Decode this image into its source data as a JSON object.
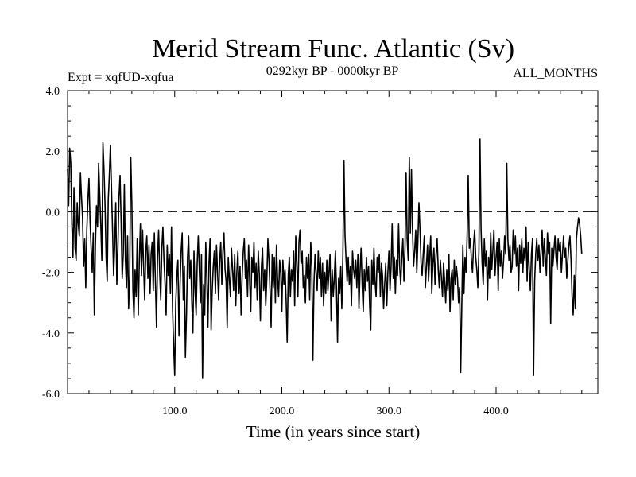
{
  "chart_data": {
    "type": "line",
    "title": "Merid Stream Func. Atlantic (Sv)",
    "subtitle_left": "Expt = xqfUD-xqfua",
    "subtitle_center": "0292kyr BP - 0000kyr BP",
    "subtitle_right": "ALL_MONTHS",
    "xlabel": "Time (in years since start)",
    "ylabel": "",
    "xlim": [
      0,
      495
    ],
    "ylim": [
      -6,
      4
    ],
    "x_ticks": [
      100,
      200,
      300,
      400
    ],
    "x_tick_labels": [
      "100.0",
      "200.0",
      "300.0",
      "400.0"
    ],
    "y_ticks": [
      -6,
      -4,
      -2,
      0,
      2,
      4
    ],
    "y_tick_labels": [
      "-6.0",
      "-4.0",
      "-2.0",
      "0.0",
      "2.0",
      "4.0"
    ],
    "reference_line": {
      "y": 0,
      "style": "dashed"
    },
    "series": [
      {
        "name": "xqfUD-xqfua",
        "x_start": 0,
        "x_step": 1,
        "values": [
          1.4,
          0.2,
          2.1,
          1.6,
          -0.4,
          -1.5,
          0.8,
          -1.2,
          -1.6,
          0.3,
          -0.4,
          -0.8,
          1.3,
          0.5,
          -0.2,
          -1.8,
          -0.9,
          -2.5,
          -0.6,
          0.4,
          1.1,
          -0.3,
          -1.2,
          -2.0,
          -0.7,
          -3.4,
          -1.1,
          0.2,
          -0.5,
          1.6,
          0.6,
          -0.4,
          -1.6,
          2.3,
          1.4,
          0.2,
          -1.5,
          -2.3,
          0.4,
          1.2,
          2.2,
          0.8,
          -0.6,
          -2.1,
          -1.1,
          0.3,
          -2.4,
          -1.2,
          0.5,
          1.2,
          -0.3,
          -2.2,
          -1.4,
          0.9,
          -1.6,
          -2.5,
          -0.8,
          -3.2,
          -2.1,
          1.8,
          0.3,
          -2.6,
          -3.5,
          -1.9,
          -2.8,
          -0.9,
          -3.4,
          -1.6,
          -0.4,
          -2.1,
          -0.6,
          -1.8,
          -2.9,
          -1.3,
          -0.8,
          -2.2,
          -1.1,
          -2.7,
          -1.4,
          -1.0,
          -2.6,
          -0.7,
          -2.3,
          -3.8,
          -1.5,
          -0.6,
          -2.0,
          -2.9,
          -1.2,
          -0.5,
          -1.6,
          -2.4,
          -3.4,
          -1.1,
          -2.1,
          -1.4,
          -2.7,
          -0.5,
          -3.2,
          -4.4,
          -5.4,
          -3.0,
          -2.1,
          -1.6,
          -4.1,
          -2.4,
          -1.3,
          -0.7,
          -2.9,
          -1.8,
          -4.8,
          -3.4,
          -1.5,
          -0.8,
          -2.2,
          -1.6,
          -3.0,
          -4.0,
          -1.3,
          -2.6,
          -3.4,
          -1.7,
          -0.8,
          -1.9,
          -3.0,
          -1.4,
          -5.5,
          -2.4,
          -3.4,
          -1.0,
          -2.2,
          -3.8,
          -1.7,
          -0.9,
          -3.9,
          -2.6,
          -1.8,
          -1.3,
          -2.7,
          -1.1,
          -2.0,
          -2.9,
          -1.6,
          -1.0,
          -2.4,
          -1.3,
          -0.7,
          -1.9,
          -2.3,
          -3.8,
          -1.5,
          -2.2,
          -2.8,
          -1.2,
          -1.9,
          -2.6,
          -1.4,
          -3.1,
          -2.0,
          -1.3,
          -2.7,
          -1.8,
          -3.4,
          -2.1,
          -1.3,
          -0.9,
          -2.2,
          -1.6,
          -2.8,
          -1.1,
          -2.3,
          -3.3,
          -1.5,
          -2.0,
          -1.0,
          -2.5,
          -1.7,
          -2.9,
          -1.3,
          -2.1,
          -3.6,
          -1.8,
          -1.2,
          -2.6,
          -1.9,
          -3.1,
          -2.2,
          -0.9,
          -1.6,
          -2.6,
          -3.8,
          -1.4,
          -2.5,
          -1.5,
          -3.0,
          -1.1,
          -2.2,
          -2.8,
          -1.6,
          -2.0,
          -3.3,
          -1.6,
          -2.4,
          -1.9,
          -2.9,
          -4.3,
          -2.1,
          -1.5,
          -2.8,
          -1.9,
          -2.3,
          -1.3,
          -3.1,
          -0.8,
          -1.7,
          -2.8,
          -1.0,
          -0.6,
          -1.7,
          -1.3,
          -2.5,
          -2.1,
          -3.0,
          -1.5,
          -2.2,
          -1.4,
          -2.9,
          -1.0,
          -1.8,
          -4.9,
          -2.4,
          -1.4,
          -2.0,
          -2.6,
          -1.3,
          -2.2,
          -1.5,
          -2.8,
          -1.7,
          -3.1,
          -2.0,
          -2.7,
          -1.6,
          -2.6,
          -2.0,
          -1.4,
          -3.6,
          -1.9,
          -2.8,
          -2.2,
          -1.3,
          -2.5,
          -4.3,
          -2.2,
          -2.7,
          -1.8,
          -3.2,
          -1.4,
          1.7,
          -0.8,
          -1.6,
          -2.3,
          -1.5,
          -2.4,
          -1.8,
          -3.1,
          -1.3,
          -1.9,
          -2.2,
          -1.6,
          -2.5,
          -1.4,
          -3.2,
          -2.0,
          -1.2,
          -2.4,
          -3.3,
          -1.9,
          -2.6,
          -1.5,
          -2.3,
          -1.8,
          -3.1,
          -3.9,
          -1.6,
          -2.4,
          -1.2,
          -2.3,
          -2.8,
          -1.5,
          -2.0,
          -1.4,
          -2.8,
          -1.7,
          -2.1,
          -3.2,
          -2.4,
          -1.7,
          -3.1,
          -2.0,
          -1.3,
          -2.6,
          -1.8,
          -0.4,
          -2.2,
          -1.5,
          -2.7,
          -1.6,
          -2.1,
          -0.4,
          -1.8,
          -2.4,
          -1.5,
          -0.9,
          -2.3,
          -1.2,
          1.3,
          -0.9,
          -1.6,
          1.8,
          -0.7,
          1.4,
          -0.6,
          -1.8,
          -1.3,
          -0.6,
          -2.0,
          -1.0,
          0.3,
          -0.6,
          -1.7,
          -2.1,
          -1.4,
          -0.8,
          -2.5,
          -1.8,
          -1.1,
          -2.3,
          -1.5,
          -0.8,
          -2.7,
          -1.7,
          -1.2,
          -2.4,
          -1.4,
          -0.9,
          -1.9,
          -2.5,
          -1.6,
          -2.2,
          -2.8,
          -1.7,
          -2.3,
          -3.0,
          -1.9,
          -2.6,
          -1.4,
          -3.3,
          -2.2,
          -1.9,
          -2.9,
          -1.6,
          -2.4,
          -1.8,
          -2.2,
          -3.0,
          -2.5,
          -5.3,
          -3.1,
          -1.1,
          -2.7,
          -1.5,
          -2.0,
          -0.8,
          1.2,
          -1.2,
          -0.9,
          -1.6,
          -2.0,
          -1.1,
          -0.6,
          -1.5,
          -1.9,
          -2.5,
          -1.3,
          2.4,
          -0.6,
          -1.7,
          -2.4,
          -0.9,
          -1.8,
          -1.3,
          -2.9,
          -1.5,
          -2.2,
          -0.7,
          -1.9,
          -1.3,
          -0.6,
          -2.1,
          -1.5,
          -1.0,
          -2.6,
          -0.9,
          -1.8,
          -1.3,
          -2.2,
          -1.6,
          -0.8,
          -1.4,
          1.6,
          -0.9,
          -1.6,
          -1.1,
          -2.0,
          -1.8,
          -0.6,
          -1.4,
          -0.8,
          -1.8,
          -1.2,
          -2.6,
          -1.1,
          -1.7,
          -0.9,
          -2.0,
          -1.2,
          -1.6,
          -0.5,
          -2.3,
          -1.0,
          -1.9,
          -2.6,
          -1.4,
          -0.9,
          -5.4,
          -2.3,
          -1.4,
          -0.9,
          -1.6,
          -1.1,
          -2.0,
          -1.3,
          -0.6,
          -1.8,
          -0.9,
          -1.5,
          -2.1,
          -0.7,
          -1.4,
          -1.0,
          -3.7,
          -1.2,
          -1.8,
          -1.3,
          -0.8,
          -1.5,
          -1.9,
          -0.9,
          -1.3,
          -1.0,
          -2.0,
          -1.4,
          -0.8,
          -1.5,
          -1.2,
          -2.2,
          -1.6,
          -1.1,
          -0.8,
          -1.6,
          -2.8,
          -3.4,
          -2.1,
          -3.2,
          -0.9,
          -0.5,
          -0.2,
          -0.4,
          -0.8,
          -1.4
        ]
      }
    ]
  }
}
